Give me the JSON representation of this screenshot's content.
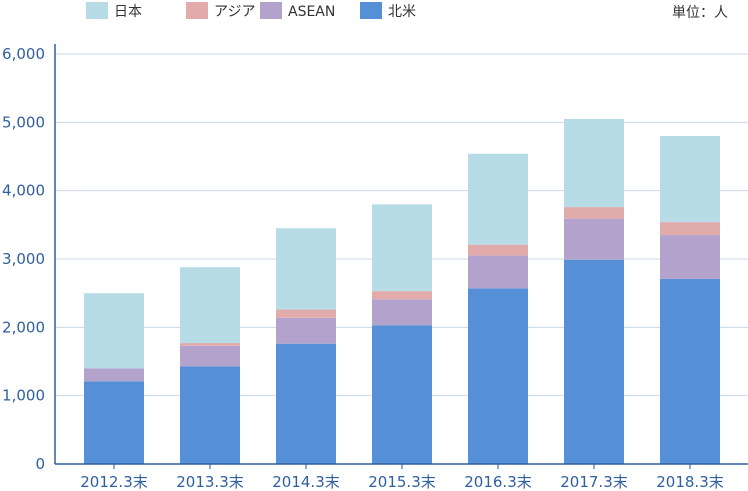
{
  "chart_data": {
    "type": "bar",
    "stacked": true,
    "unit_label": "単位：人",
    "categories": [
      "2012.3末",
      "2013.3末",
      "2014.3末",
      "2015.3末",
      "2016.3末",
      "2017.3末",
      "2018.3末"
    ],
    "series": [
      {
        "name": "北米",
        "color": "#5590d6",
        "values": [
          1210,
          1430,
          1760,
          2030,
          2570,
          2990,
          2710
        ]
      },
      {
        "name": "ASEAN",
        "color": "#b3a3cc",
        "values": [
          190,
          300,
          380,
          380,
          480,
          600,
          640
        ]
      },
      {
        "name": "アジア",
        "color": "#e2abab",
        "values": [
          0,
          40,
          120,
          120,
          160,
          170,
          190
        ]
      },
      {
        "name": "日本",
        "color": "#b8dce6",
        "values": [
          1100,
          1110,
          1190,
          1270,
          1330,
          1290,
          1260
        ]
      }
    ],
    "legend_order": [
      "日本",
      "アジア",
      "ASEAN",
      "北米"
    ],
    "yticks": [
      "0",
      "1,000",
      "2,000",
      "3,000",
      "4,000",
      "5,000",
      "6,000"
    ],
    "ylim": [
      0,
      6000
    ],
    "grid": true,
    "legend_position": "top-left"
  }
}
